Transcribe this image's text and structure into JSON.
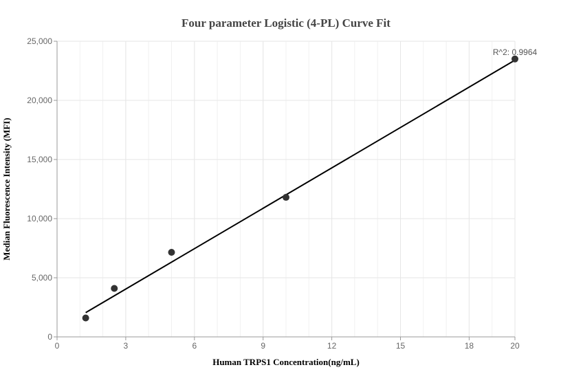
{
  "chart_data": {
    "type": "scatter",
    "title": "Four parameter Logistic (4-PL) Curve Fit",
    "xlabel": "Human TRPS1 Concentration(ng/mL)",
    "ylabel": "Median Fluorescence Intensity (MFI)",
    "xlim": [
      0,
      20
    ],
    "ylim": [
      0,
      25000
    ],
    "x_ticks": [
      0,
      3,
      6,
      9,
      12,
      15,
      18,
      20
    ],
    "y_ticks": [
      0,
      5000,
      10000,
      15000,
      20000,
      25000
    ],
    "y_tick_labels": [
      "0",
      "5,000",
      "10,000",
      "15,000",
      "20,000",
      "25,000"
    ],
    "grid": true,
    "series": [
      {
        "points": [
          {
            "x": 1.25,
            "y": 1600
          },
          {
            "x": 2.5,
            "y": 4100
          },
          {
            "x": 5,
            "y": 7150
          },
          {
            "x": 10,
            "y": 11800
          },
          {
            "x": 20,
            "y": 23500
          }
        ]
      }
    ],
    "fit_line": [
      {
        "x": 1.25,
        "y": 2050
      },
      {
        "x": 20,
        "y": 23400
      }
    ],
    "annotation": "R^2: 0.9964",
    "colors": {
      "points": "#333333",
      "line": "#000000",
      "grid": "#e6e6e6",
      "axis": "#999999"
    }
  }
}
